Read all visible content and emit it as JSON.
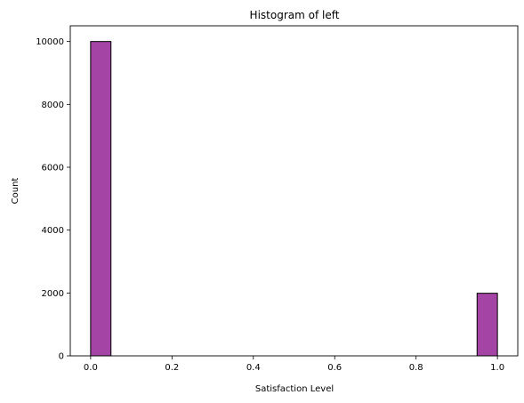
{
  "chart_data": {
    "type": "bar",
    "title": "Histogram of left",
    "xlabel": "Satisfaction Level",
    "ylabel": "Count",
    "xlim": [
      -0.05,
      1.05
    ],
    "ylim": [
      0,
      10500
    ],
    "x_ticks": [
      "0.0",
      "0.2",
      "0.4",
      "0.6",
      "0.8",
      "1.0"
    ],
    "y_ticks": [
      "0",
      "2000",
      "4000",
      "6000",
      "8000",
      "10000"
    ],
    "bin_width": 0.05,
    "bins": [
      {
        "x0": 0.0,
        "x1": 0.05,
        "count": 10000
      },
      {
        "x0": 0.05,
        "x1": 0.1,
        "count": 0
      },
      {
        "x0": 0.1,
        "x1": 0.15,
        "count": 0
      },
      {
        "x0": 0.15,
        "x1": 0.2,
        "count": 0
      },
      {
        "x0": 0.2,
        "x1": 0.25,
        "count": 0
      },
      {
        "x0": 0.25,
        "x1": 0.3,
        "count": 0
      },
      {
        "x0": 0.3,
        "x1": 0.35,
        "count": 0
      },
      {
        "x0": 0.35,
        "x1": 0.4,
        "count": 0
      },
      {
        "x0": 0.4,
        "x1": 0.45,
        "count": 0
      },
      {
        "x0": 0.45,
        "x1": 0.5,
        "count": 0
      },
      {
        "x0": 0.5,
        "x1": 0.55,
        "count": 0
      },
      {
        "x0": 0.55,
        "x1": 0.6,
        "count": 0
      },
      {
        "x0": 0.6,
        "x1": 0.65,
        "count": 0
      },
      {
        "x0": 0.65,
        "x1": 0.7,
        "count": 0
      },
      {
        "x0": 0.7,
        "x1": 0.75,
        "count": 0
      },
      {
        "x0": 0.75,
        "x1": 0.8,
        "count": 0
      },
      {
        "x0": 0.8,
        "x1": 0.85,
        "count": 0
      },
      {
        "x0": 0.85,
        "x1": 0.9,
        "count": 0
      },
      {
        "x0": 0.9,
        "x1": 0.95,
        "count": 0
      },
      {
        "x0": 0.95,
        "x1": 1.0,
        "count": 1991
      }
    ],
    "bar_color": "#a444a4",
    "edge_color": "#000000",
    "grid": false,
    "legend": "none"
  }
}
